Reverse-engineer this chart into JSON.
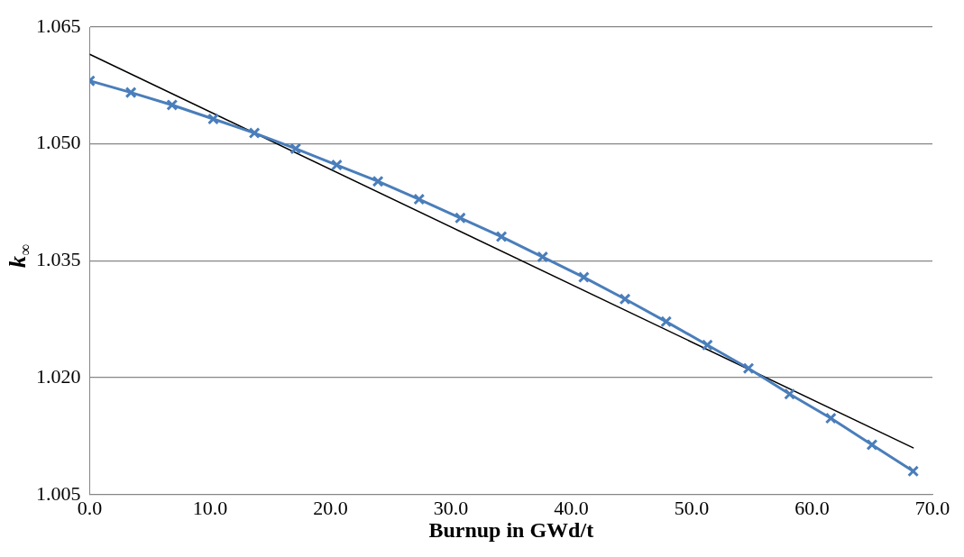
{
  "chart_data": {
    "type": "line",
    "xlabel": "Burnup in GWd/t",
    "ylabel": "k$_{∞}$",
    "xlim": [
      0,
      70
    ],
    "xticks": [
      {
        "value": 0,
        "label": "0.0"
      },
      {
        "value": 10,
        "label": "10.0"
      },
      {
        "value": 20,
        "label": "20.0"
      },
      {
        "value": 30,
        "label": "30.0"
      },
      {
        "value": 40,
        "label": "40.0"
      },
      {
        "value": 50,
        "label": "50.0"
      },
      {
        "value": 60,
        "label": "60.0"
      },
      {
        "value": 70,
        "label": "70.0"
      }
    ],
    "ylim": [
      1.005,
      1.065
    ],
    "yticks": [
      {
        "value": 1.005,
        "label": "1.005"
      },
      {
        "value": 1.02,
        "label": "1.020"
      },
      {
        "value": 1.035,
        "label": "1.035"
      },
      {
        "value": 1.05,
        "label": "1.050"
      },
      1.065
    ],
    "grid": "y",
    "marker": "cross",
    "line_style": "solid",
    "series": [
      {
        "color": "#4a7ebb",
        "x": [
          0,
          3.42,
          6.84,
          10.26,
          13.68,
          17.1,
          20.52,
          23.94,
          27.36,
          30.78,
          34.2,
          37.62,
          41.04,
          44.46,
          47.88,
          51.3,
          54.72,
          58.14,
          61.56,
          64.98,
          68.4
        ],
        "values": [
          1.0581,
          1.0566,
          1.055,
          1.0532,
          1.0514,
          1.0494,
          1.0473,
          1.0452,
          1.0429,
          1.0405,
          1.0381,
          1.0355,
          1.0329,
          1.0301,
          1.0272,
          1.0242,
          1.0212,
          1.0179,
          1.0148,
          1.0114,
          1.008
        ]
      },
      {
        "type": "line",
        "color": "#000000",
        "marker": "none",
        "x": [
          0,
          68.4
        ],
        "values": [
          1.0615,
          1.011
        ]
      }
    ]
  }
}
